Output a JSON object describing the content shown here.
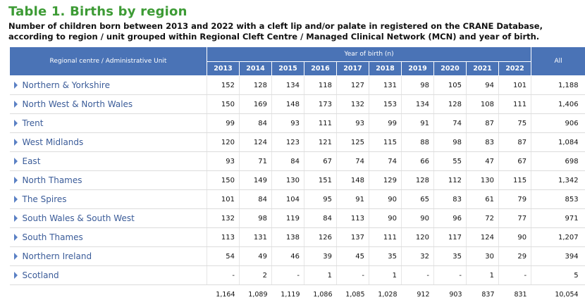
{
  "title": "Table 1. Births by region",
  "subtitle_line1": "Number of children born between 2013 and 2022 with a cleft lip and/or palate in registered on the CRANE Database,",
  "subtitle_line2": "according to region / unit grouped within Regional Cleft Centre / Managed Clinical Network (MCN) and year of birth.",
  "header": {
    "region_label": "Regional centre / Administrative Unit",
    "year_group_label": "Year of birth (n)",
    "years": [
      "2013",
      "2014",
      "2015",
      "2016",
      "2017",
      "2018",
      "2019",
      "2020",
      "2021",
      "2022"
    ],
    "all_label": "All"
  },
  "rows": [
    {
      "region": "Northern & Yorkshire",
      "values": [
        "152",
        "128",
        "134",
        "118",
        "127",
        "131",
        "98",
        "105",
        "94",
        "101"
      ],
      "all": "1,188"
    },
    {
      "region": "North West & North Wales",
      "values": [
        "150",
        "169",
        "148",
        "173",
        "132",
        "153",
        "134",
        "128",
        "108",
        "111"
      ],
      "all": "1,406"
    },
    {
      "region": "Trent",
      "values": [
        "99",
        "84",
        "93",
        "111",
        "93",
        "99",
        "91",
        "74",
        "87",
        "75"
      ],
      "all": "906"
    },
    {
      "region": "West Midlands",
      "values": [
        "120",
        "124",
        "123",
        "121",
        "125",
        "115",
        "88",
        "98",
        "83",
        "87"
      ],
      "all": "1,084"
    },
    {
      "region": "East",
      "values": [
        "93",
        "71",
        "84",
        "67",
        "74",
        "74",
        "66",
        "55",
        "47",
        "67"
      ],
      "all": "698"
    },
    {
      "region": "North Thames",
      "values": [
        "150",
        "149",
        "130",
        "151",
        "148",
        "129",
        "128",
        "112",
        "130",
        "115"
      ],
      "all": "1,342"
    },
    {
      "region": "The Spires",
      "values": [
        "101",
        "84",
        "104",
        "95",
        "91",
        "90",
        "65",
        "83",
        "61",
        "79"
      ],
      "all": "853"
    },
    {
      "region": "South Wales & South West",
      "values": [
        "132",
        "98",
        "119",
        "84",
        "113",
        "90",
        "90",
        "96",
        "72",
        "77"
      ],
      "all": "971"
    },
    {
      "region": "South Thames",
      "values": [
        "113",
        "131",
        "138",
        "126",
        "137",
        "111",
        "120",
        "117",
        "124",
        "90"
      ],
      "all": "1,207"
    },
    {
      "region": "Northern Ireland",
      "values": [
        "54",
        "49",
        "46",
        "39",
        "45",
        "35",
        "32",
        "35",
        "30",
        "29"
      ],
      "all": "394"
    },
    {
      "region": "Scotland",
      "values": [
        "-",
        "2",
        "-",
        "1",
        "-",
        "1",
        "-",
        "-",
        "1",
        "-"
      ],
      "all": "5"
    }
  ],
  "totals": {
    "values": [
      "1,164",
      "1,089",
      "1,119",
      "1,086",
      "1,085",
      "1,028",
      "912",
      "903",
      "837",
      "831"
    ],
    "all": "10,054"
  },
  "colors": {
    "title": "#3d9b35",
    "header_bg": "#4a73b6",
    "region_text": "#3b5c99",
    "arrow": "#5a80c4"
  },
  "icons": {
    "row_expand": "triangle-right-icon"
  }
}
